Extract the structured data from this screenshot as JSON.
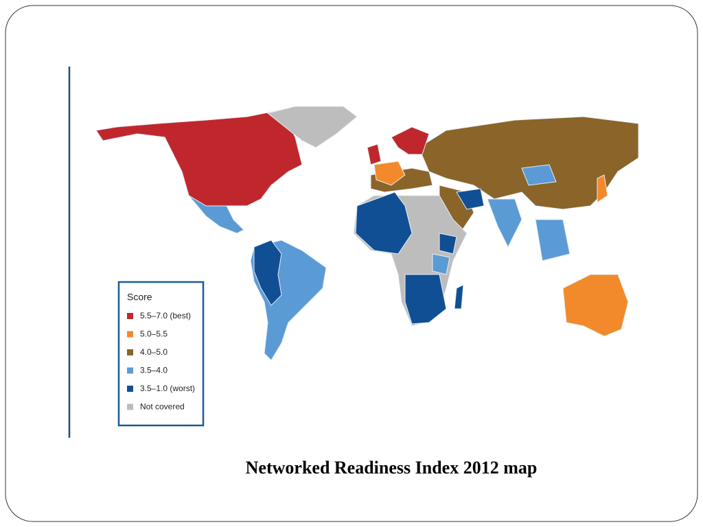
{
  "legend": {
    "title": "Score",
    "items": [
      {
        "label": "5.5–7.0 (best)",
        "color": "#c0272d"
      },
      {
        "label": "5.0–5.5",
        "color": "#f28a2b"
      },
      {
        "label": "4.0–5.0",
        "color": "#8a6429"
      },
      {
        "label": "3.5–4.0",
        "color": "#5b9bd5"
      },
      {
        "label": "3.5–1.0 (worst)",
        "color": "#114f95"
      },
      {
        "label": "Not covered",
        "color": "#bdbdbd"
      }
    ]
  },
  "caption": "Networked Readiness Index 2012 map"
}
